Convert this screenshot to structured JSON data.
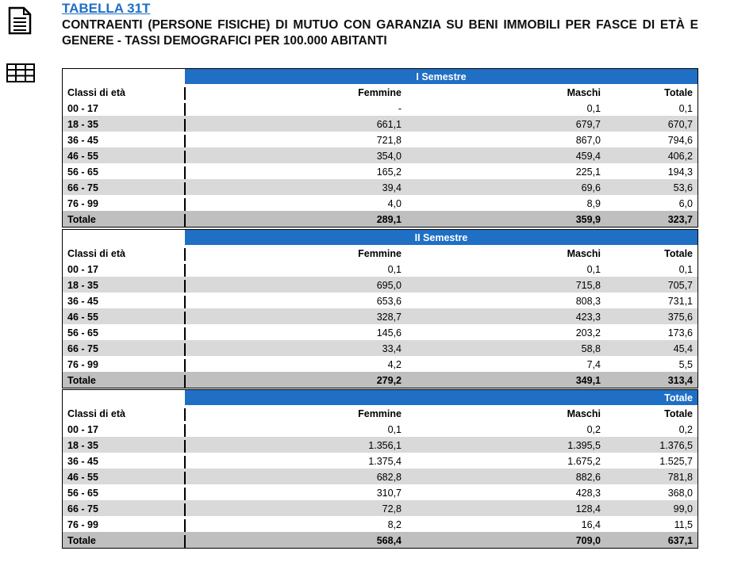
{
  "header": {
    "table_id": "TABELLA 31T",
    "title": "CONTRAENTI (PERSONE FISICHE) DI MUTUO CON GARANZIA SU BENI IMMOBILI PER FASCE DI ETÀ E GENERE - TASSI DEMOGRAFICI PER 100.000 ABITANTI"
  },
  "sections": [
    {
      "title": "I Semestre",
      "columns": [
        "Classi di età",
        "Femmine",
        "Maschi",
        "Totale"
      ],
      "rows": [
        [
          "00 - 17",
          "-",
          "0,1",
          "0,1"
        ],
        [
          "18 - 35",
          "661,1",
          "679,7",
          "670,7"
        ],
        [
          "36 - 45",
          "721,8",
          "867,0",
          "794,6"
        ],
        [
          "46 - 55",
          "354,0",
          "459,4",
          "406,2"
        ],
        [
          "56 - 65",
          "165,2",
          "225,1",
          "194,3"
        ],
        [
          "66 - 75",
          "39,4",
          "69,6",
          "53,6"
        ],
        [
          "76 - 99",
          "4,0",
          "8,9",
          "6,0"
        ]
      ],
      "total": [
        "Totale",
        "289,1",
        "359,9",
        "323,7"
      ]
    },
    {
      "title": "II Semestre",
      "columns": [
        "Classi di età",
        "Femmine",
        "Maschi",
        "Totale"
      ],
      "rows": [
        [
          "00 - 17",
          "0,1",
          "0,1",
          "0,1"
        ],
        [
          "18 - 35",
          "695,0",
          "715,8",
          "705,7"
        ],
        [
          "36 - 45",
          "653,6",
          "808,3",
          "731,1"
        ],
        [
          "46 - 55",
          "328,7",
          "423,3",
          "375,6"
        ],
        [
          "56 - 65",
          "145,6",
          "203,2",
          "173,6"
        ],
        [
          "66 - 75",
          "33,4",
          "58,8",
          "45,4"
        ],
        [
          "76 - 99",
          "4,2",
          "7,4",
          "5,5"
        ]
      ],
      "total": [
        "Totale",
        "279,2",
        "349,1",
        "313,4"
      ]
    },
    {
      "title": "Totale",
      "columns": [
        "Classi di età",
        "Femmine",
        "Maschi",
        "Totale"
      ],
      "rows": [
        [
          "00 - 17",
          "0,1",
          "0,2",
          "0,2"
        ],
        [
          "18 - 35",
          "1.356,1",
          "1.395,5",
          "1.376,5"
        ],
        [
          "36 - 45",
          "1.375,4",
          "1.675,2",
          "1.525,7"
        ],
        [
          "46 - 55",
          "682,8",
          "882,6",
          "781,8"
        ],
        [
          "56 - 65",
          "310,7",
          "428,3",
          "368,0"
        ],
        [
          "66 - 75",
          "72,8",
          "128,4",
          "99,0"
        ],
        [
          "76 - 99",
          "8,2",
          "16,4",
          "11,5"
        ]
      ],
      "total": [
        "Totale",
        "568,4",
        "709,0",
        "637,1"
      ]
    }
  ]
}
